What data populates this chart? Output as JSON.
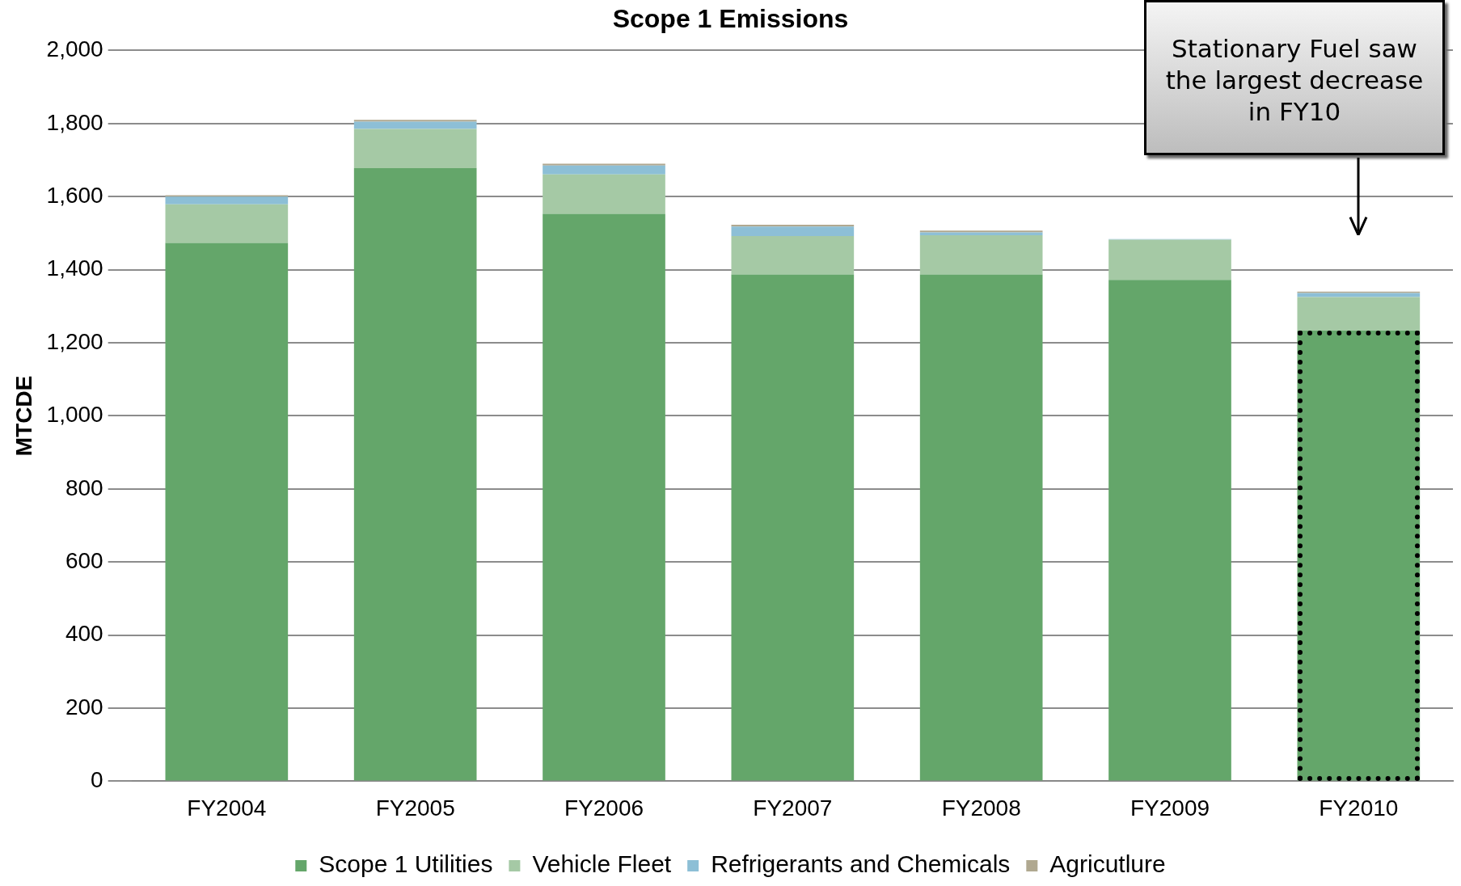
{
  "chart_data": {
    "type": "bar",
    "title": "Scope 1 Emissions",
    "ylabel": "MTCDE",
    "stacked": true,
    "categories": [
      "FY2004",
      "FY2005",
      "FY2006",
      "FY2007",
      "FY2008",
      "FY2009",
      "FY2010"
    ],
    "series": [
      {
        "name": "Scope 1 Utilities",
        "color": "#64a66a",
        "values": [
          1473,
          1678,
          1553,
          1387,
          1387,
          1372,
          1233
        ]
      },
      {
        "name": "Vehicle Fleet",
        "color": "#a5c9a5",
        "values": [
          106,
          107,
          108,
          105,
          107,
          110,
          92
        ]
      },
      {
        "name": "Refrigerants and Chemicals",
        "color": "#8dbfd6",
        "values": [
          21,
          20,
          24,
          26,
          8,
          2,
          11
        ]
      },
      {
        "name": "Agricutlure",
        "color": "#b0a890",
        "values": [
          4,
          5,
          5,
          5,
          5,
          0,
          4
        ]
      }
    ],
    "ylim": [
      0,
      2000
    ],
    "yticks": [
      {
        "value": 0,
        "label": "0"
      },
      {
        "value": 200,
        "label": "200"
      },
      {
        "value": 400,
        "label": "400"
      },
      {
        "value": 600,
        "label": "600"
      },
      {
        "value": 800,
        "label": "800"
      },
      {
        "value": 1000,
        "label": "1,000"
      },
      {
        "value": 1200,
        "label": "1,200"
      },
      {
        "value": 1400,
        "label": "1,400"
      },
      {
        "value": 1600,
        "label": "1,600"
      },
      {
        "value": 1800,
        "label": "1,800"
      },
      {
        "value": 2000,
        "label": "2,000"
      }
    ],
    "grid": "y",
    "legend": "bottom",
    "annotations": [
      "Stationary Fuel saw the largest decrease in FY10"
    ]
  }
}
